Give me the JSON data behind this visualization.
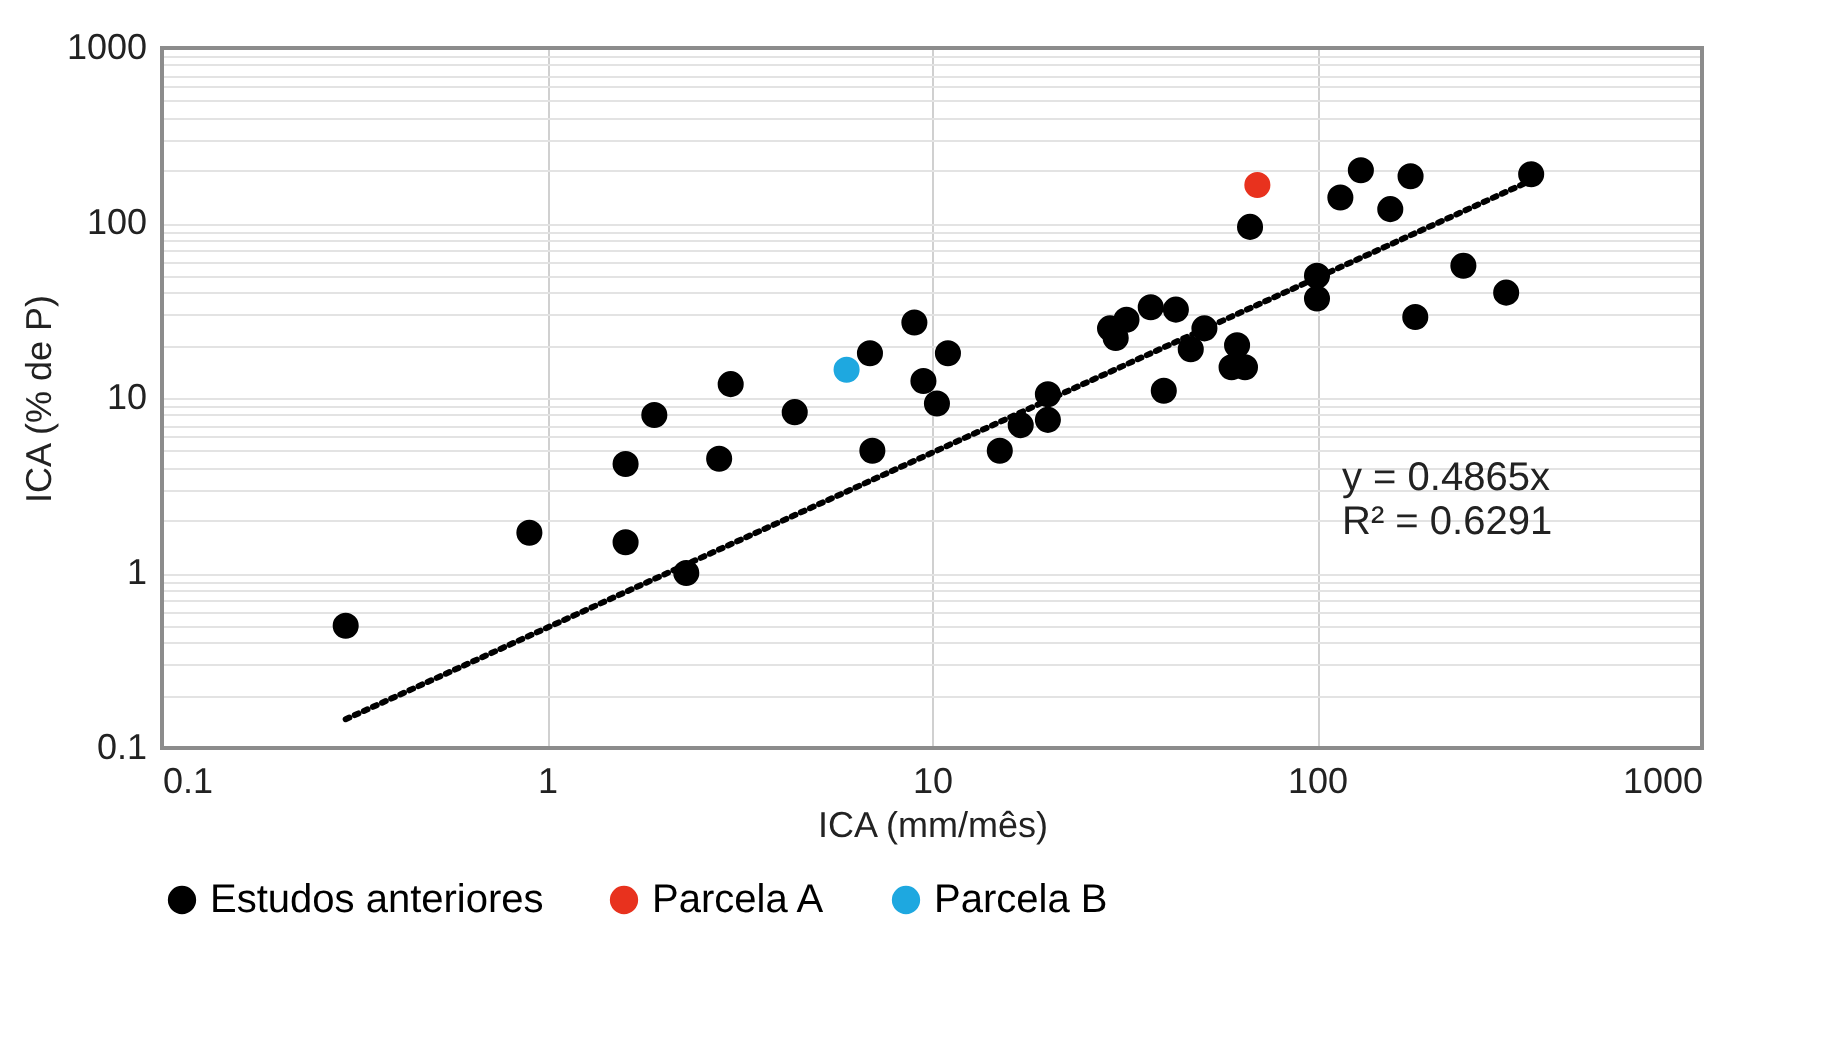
{
  "chart_data": {
    "type": "scatter",
    "xlabel": "ICA (mm/mês)",
    "ylabel": "ICA (% de P)",
    "log": "xy",
    "grid": true,
    "legend": "bottom",
    "marker": "circle",
    "xlim": [
      0.1,
      1000
    ],
    "xticks": [
      0.1,
      1,
      10,
      100,
      1000
    ],
    "ylim": [
      0.1,
      1000
    ],
    "yticks": [
      0.1,
      {
        "value": 0.2,
        "label": null
      },
      {
        "value": 0.3,
        "label": null
      },
      {
        "value": 0.4,
        "label": null
      },
      {
        "value": 0.5,
        "label": null
      },
      {
        "value": 0.6,
        "label": null
      },
      {
        "value": 0.7,
        "label": null
      },
      {
        "value": 0.8,
        "label": null
      },
      {
        "value": 0.9,
        "label": null
      },
      1,
      {
        "value": 2,
        "label": null
      },
      {
        "value": 3,
        "label": null
      },
      {
        "value": 4,
        "label": null
      },
      {
        "value": 5,
        "label": null
      },
      {
        "value": 6,
        "label": null
      },
      {
        "value": 7,
        "label": null
      },
      {
        "value": 8,
        "label": null
      },
      {
        "value": 9,
        "label": null
      },
      10,
      {
        "value": 20,
        "label": null
      },
      {
        "value": 30,
        "label": null
      },
      {
        "value": 40,
        "label": null
      },
      {
        "value": 50,
        "label": null
      },
      {
        "value": 60,
        "label": null
      },
      {
        "value": 70,
        "label": null
      },
      {
        "value": 80,
        "label": null
      },
      {
        "value": 90,
        "label": null
      },
      100,
      {
        "value": 200,
        "label": null
      },
      {
        "value": 300,
        "label": null
      },
      {
        "value": 400,
        "label": null
      },
      {
        "value": 500,
        "label": null
      },
      {
        "value": 600,
        "label": null
      },
      {
        "value": 700,
        "label": null
      },
      {
        "value": 800,
        "label": null
      },
      {
        "value": 900,
        "label": null
      },
      1000
    ],
    "series": [
      {
        "name": "Estudos anteriores",
        "color": "#000000",
        "x": [
          0.3,
          0.9,
          1.6,
          1.6,
          1.9,
          2.3,
          2.8,
          3.0,
          4.4,
          6.9,
          7.0,
          9.0,
          9.5,
          10.3,
          11,
          15,
          17,
          20,
          20,
          29,
          30,
          32,
          37,
          40,
          43,
          47,
          51,
          60,
          62,
          65,
          67,
          100,
          100,
          115,
          130,
          155,
          175,
          180,
          240,
          310,
          360
        ],
        "values": [
          0.5,
          1.7,
          1.5,
          4.2,
          8,
          1.0,
          4.5,
          12,
          8.3,
          18,
          5.0,
          27,
          12.5,
          9.3,
          18,
          5,
          7,
          7.5,
          10.5,
          25,
          22,
          28,
          33,
          11,
          32,
          19,
          25,
          15,
          20,
          15,
          95,
          37,
          50,
          140,
          200,
          120,
          185,
          29,
          57,
          40,
          190
        ]
      },
      {
        "name": "Parcela A",
        "color": "#e8321e",
        "x": [
          70
        ],
        "values": [
          165
        ]
      },
      {
        "name": "Parcela B",
        "color": "#1ea8e0",
        "x": [
          6
        ],
        "values": [
          14.5
        ]
      },
      {
        "type": "line",
        "color": "#000000",
        "line_style": "dotted",
        "marker": "none",
        "x": [
          0.3,
          360
        ],
        "values": [
          0.146,
          175.1
        ]
      }
    ],
    "annotations": [
      "y = 0.4865x\nR² = 0.6291"
    ]
  }
}
